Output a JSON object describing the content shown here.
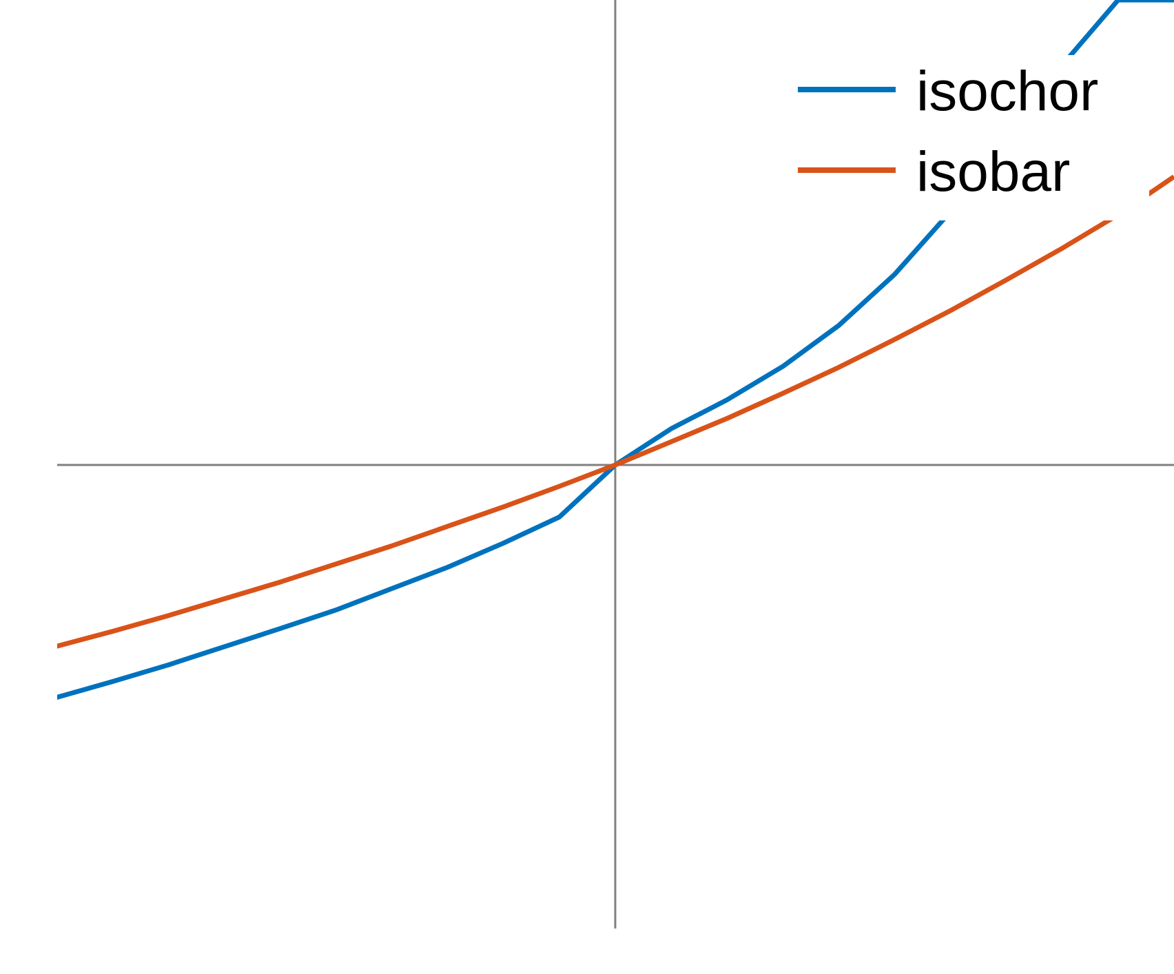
{
  "chart_data": {
    "type": "line",
    "title": "",
    "xlabel": "",
    "ylabel": "",
    "xlim": [
      -1,
      1
    ],
    "ylim": [
      -1,
      1
    ],
    "grid": false,
    "axes_color": "#808080",
    "legend_position": "top-right",
    "series": [
      {
        "name": "isochor",
        "color": "#0072BD",
        "x": [
          -1,
          -0.9,
          -0.8,
          -0.7,
          -0.6,
          -0.5,
          -0.4,
          -0.3,
          -0.2,
          -0.1,
          0,
          0.1,
          0.2,
          0.3,
          0.4,
          0.5,
          0.6,
          0.7,
          0.8,
          0.9,
          1
        ],
        "y": [
          -0.5,
          -0.466,
          -0.43,
          -0.391,
          -0.352,
          -0.312,
          -0.266,
          -0.22,
          -0.168,
          -0.112,
          0,
          0.078,
          0.14,
          0.212,
          0.3,
          0.41,
          0.545,
          0.7,
          0.86,
          1.0,
          1.0
        ]
      },
      {
        "name": "isobar",
        "color": "#D95319",
        "x": [
          -1,
          -0.9,
          -0.8,
          -0.7,
          -0.6,
          -0.5,
          -0.4,
          -0.3,
          -0.2,
          -0.1,
          0,
          0.1,
          0.2,
          0.3,
          0.4,
          0.5,
          0.6,
          0.7,
          0.8,
          0.9,
          1
        ],
        "y": [
          -0.39,
          -0.358,
          -0.324,
          -0.288,
          -0.252,
          -0.213,
          -0.174,
          -0.132,
          -0.09,
          -0.046,
          0,
          0.05,
          0.1,
          0.154,
          0.21,
          0.27,
          0.332,
          0.398,
          0.466,
          0.538,
          0.62
        ]
      }
    ]
  }
}
